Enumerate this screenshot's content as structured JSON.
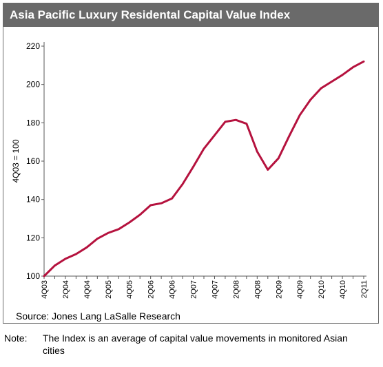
{
  "chart_data": {
    "type": "line",
    "title": "Asia Pacific Luxury Residental Capital Value Index",
    "ylabel": "4Q03 = 100",
    "xlabel": "",
    "ylim": [
      100,
      220
    ],
    "yticks": [
      100,
      120,
      140,
      160,
      180,
      200,
      220
    ],
    "grid": false,
    "legend": "none",
    "line_color": "#b5123e",
    "categories": [
      "4Q03",
      "1Q04",
      "2Q04",
      "3Q04",
      "4Q04",
      "1Q05",
      "2Q05",
      "3Q05",
      "4Q05",
      "1Q06",
      "2Q06",
      "3Q06",
      "4Q06",
      "1Q07",
      "2Q07",
      "3Q07",
      "4Q07",
      "1Q08",
      "2Q08",
      "3Q08",
      "4Q08",
      "1Q09",
      "2Q09",
      "3Q09",
      "4Q09",
      "1Q10",
      "2Q10",
      "3Q10",
      "4Q10",
      "1Q11",
      "2Q11"
    ],
    "tick_labels": [
      "4Q03",
      "2Q04",
      "4Q04",
      "2Q05",
      "4Q05",
      "2Q06",
      "4Q06",
      "2Q07",
      "4Q07",
      "2Q08",
      "4Q08",
      "2Q09",
      "4Q09",
      "2Q10",
      "4Q10",
      "2Q11"
    ],
    "series": [
      {
        "values": [
          100,
          105.5,
          109,
          111.5,
          115,
          119.5,
          122.5,
          124.5,
          128,
          132,
          137,
          138,
          140.5,
          148,
          157,
          166.5,
          173.5,
          180.5,
          181.5,
          179.5,
          165,
          155.5,
          161.5,
          173,
          184,
          192,
          198,
          201.5,
          205,
          209,
          212
        ]
      }
    ],
    "source": "Source: Jones Lang LaSalle Research"
  },
  "note": {
    "label": "Note:",
    "text": "The Index is an average of capital value movements in monitored Asian cities"
  }
}
